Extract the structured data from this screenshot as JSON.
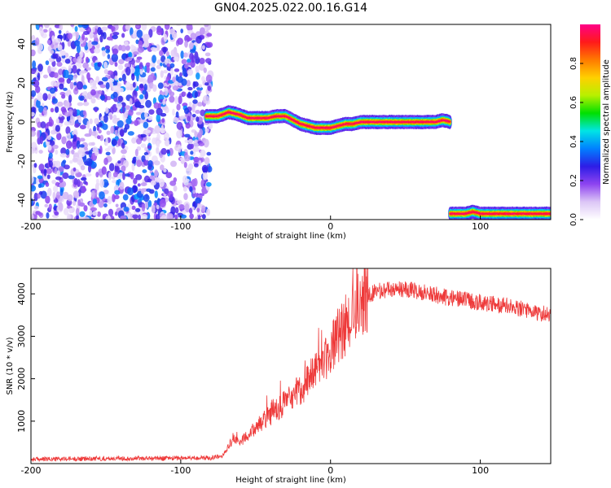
{
  "chart_data": [
    {
      "type": "heatmap",
      "title": "GN04.2025.022.00.16.G14",
      "xlabel": "Height of straight line (km)",
      "ylabel": "Frequency (Hz)",
      "xlim": [
        -200,
        147
      ],
      "ylim": [
        -50,
        50
      ],
      "x_ticks": [
        -200,
        -100,
        0,
        100
      ],
      "y_ticks": [
        -40,
        -20,
        0,
        20,
        40
      ],
      "colorbar": {
        "label": "Normalized spectral amplitude",
        "range": [
          0,
          1
        ],
        "ticks": [
          0.0,
          0.2,
          0.4,
          0.6,
          0.8
        ],
        "colors": [
          "#ffffff",
          "#dcc6f6",
          "#8e44f0",
          "#2d1de6",
          "#0080ff",
          "#00e5e5",
          "#00e000",
          "#b8f000",
          "#ffd000",
          "#ff7a00",
          "#ff1a1a",
          "#ff0088"
        ]
      },
      "noise_region": {
        "x_range": [
          -200,
          -80
        ],
        "y_range": [
          -50,
          50
        ],
        "typical_amplitude": 0.25
      },
      "ridge_segments": [
        {
          "name": "main",
          "points": [
            [
              -83,
              3
            ],
            [
              -75,
              3
            ],
            [
              -68,
              5
            ],
            [
              -62,
              4
            ],
            [
              -55,
              2
            ],
            [
              -48,
              2
            ],
            [
              -42,
              2
            ],
            [
              -36,
              3
            ],
            [
              -30,
              3
            ],
            [
              -25,
              1
            ],
            [
              -20,
              -1
            ],
            [
              -15,
              -2
            ],
            [
              -10,
              -3
            ],
            [
              -5,
              -3
            ],
            [
              0,
              -3
            ],
            [
              5,
              -2
            ],
            [
              10,
              -1
            ],
            [
              15,
              -1
            ],
            [
              20,
              0
            ],
            [
              30,
              0
            ],
            [
              40,
              0
            ],
            [
              50,
              0
            ],
            [
              60,
              0
            ],
            [
              70,
              0
            ],
            [
              75,
              1
            ],
            [
              80,
              0
            ]
          ]
        },
        {
          "name": "aliased",
          "points": [
            [
              80,
              -47
            ],
            [
              90,
              -47
            ],
            [
              95,
              -46
            ],
            [
              100,
              -47
            ],
            [
              110,
              -47
            ],
            [
              120,
              -47
            ],
            [
              130,
              -47
            ],
            [
              147,
              -47
            ]
          ]
        }
      ]
    },
    {
      "type": "line",
      "xlabel": "Height of straight line (km)",
      "ylabel": "SNR (10 * v/v)",
      "xlim": [
        -200,
        147
      ],
      "ylim": [
        0,
        4600
      ],
      "x_ticks": [
        -200,
        -100,
        0,
        100
      ],
      "y_ticks": [
        1000,
        2000,
        3000,
        4000
      ],
      "series_color": "#ee3a3a",
      "envelope": [
        [
          -200,
          100
        ],
        [
          -150,
          120
        ],
        [
          -100,
          130
        ],
        [
          -80,
          140
        ],
        [
          -72,
          180
        ],
        [
          -68,
          400
        ],
        [
          -65,
          600
        ],
        [
          -60,
          500
        ],
        [
          -55,
          700
        ],
        [
          -50,
          850
        ],
        [
          -45,
          1000
        ],
        [
          -40,
          1150
        ],
        [
          -35,
          1300
        ],
        [
          -30,
          1450
        ],
        [
          -25,
          1600
        ],
        [
          -20,
          1750
        ],
        [
          -15,
          1950
        ],
        [
          -10,
          2150
        ],
        [
          -5,
          2400
        ],
        [
          0,
          2700
        ],
        [
          5,
          2950
        ],
        [
          10,
          3250
        ],
        [
          15,
          3550
        ],
        [
          20,
          3800
        ],
        [
          25,
          3950
        ],
        [
          30,
          4050
        ],
        [
          40,
          4100
        ],
        [
          50,
          4120
        ],
        [
          60,
          4050
        ],
        [
          70,
          3980
        ],
        [
          80,
          3900
        ],
        [
          90,
          3850
        ],
        [
          100,
          3800
        ],
        [
          110,
          3750
        ],
        [
          120,
          3700
        ],
        [
          130,
          3620
        ],
        [
          140,
          3550
        ],
        [
          147,
          3500
        ]
      ]
    }
  ]
}
